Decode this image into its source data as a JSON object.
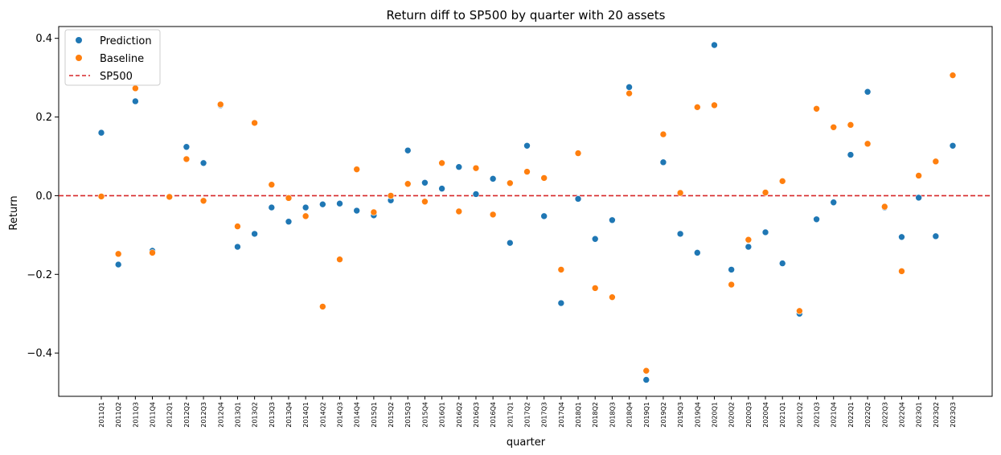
{
  "chart_data": {
    "type": "scatter",
    "title": "Return diff to SP500 by quarter with 20 assets",
    "xlabel": "quarter",
    "ylabel": "Return",
    "ylim": [
      -0.51,
      0.43
    ],
    "yticks": [
      0.4,
      0.2,
      0.0,
      -0.2,
      -0.4
    ],
    "ytick_labels": [
      "0.4",
      "0.2",
      "0.0",
      "−0.2",
      "−0.4"
    ],
    "grid": false,
    "legend_position": "top-left",
    "categories": [
      "2011Q1",
      "2011Q2",
      "2011Q3",
      "2011Q4",
      "2012Q1",
      "2012Q2",
      "2012Q3",
      "2012Q4",
      "2013Q1",
      "2013Q2",
      "2013Q3",
      "2013Q4",
      "2014Q1",
      "2014Q2",
      "2014Q3",
      "2014Q4",
      "2015Q1",
      "2015Q2",
      "2015Q3",
      "2015Q4",
      "2016Q1",
      "2016Q2",
      "2016Q3",
      "2016Q4",
      "2017Q1",
      "2017Q2",
      "2017Q3",
      "2017Q4",
      "2018Q1",
      "2018Q2",
      "2018Q3",
      "2018Q4",
      "2019Q1",
      "2019Q2",
      "2019Q3",
      "2019Q4",
      "2020Q1",
      "2020Q2",
      "2020Q3",
      "2020Q4",
      "2021Q1",
      "2021Q2",
      "2021Q3",
      "2021Q4",
      "2022Q1",
      "2022Q2",
      "2022Q3",
      "2022Q4",
      "2023Q1",
      "2023Q2",
      "2023Q3"
    ],
    "series": [
      {
        "name": "Prediction",
        "color": "#1f77b4",
        "values": [
          0.16,
          -0.175,
          0.24,
          -0.14,
          -0.003,
          0.124,
          0.083,
          0.23,
          -0.13,
          -0.097,
          -0.03,
          -0.066,
          -0.03,
          -0.022,
          -0.02,
          -0.038,
          -0.05,
          -0.012,
          0.115,
          0.033,
          0.018,
          0.073,
          0.004,
          0.043,
          -0.12,
          0.127,
          -0.052,
          -0.273,
          -0.008,
          -0.11,
          -0.062,
          0.276,
          -0.468,
          0.085,
          -0.097,
          -0.145,
          0.383,
          -0.188,
          -0.13,
          -0.093,
          -0.172,
          -0.3,
          -0.06,
          -0.017,
          0.104,
          0.264,
          -0.03,
          -0.105,
          -0.005,
          -0.103,
          0.127
        ]
      },
      {
        "name": "Baseline",
        "color": "#ff7f0e",
        "values": [
          -0.002,
          -0.148,
          0.273,
          -0.145,
          -0.003,
          0.093,
          -0.013,
          0.232,
          -0.078,
          0.185,
          0.028,
          -0.006,
          -0.052,
          -0.282,
          -0.162,
          0.067,
          -0.042,
          0.0,
          0.03,
          -0.015,
          0.083,
          -0.04,
          0.07,
          -0.048,
          0.032,
          0.061,
          0.045,
          -0.188,
          0.108,
          -0.235,
          -0.258,
          0.26,
          -0.445,
          0.156,
          0.007,
          0.225,
          0.23,
          -0.226,
          -0.112,
          0.008,
          0.037,
          -0.293,
          0.221,
          0.174,
          0.18,
          0.132,
          -0.028,
          -0.192,
          0.051,
          0.087,
          0.306
        ]
      }
    ],
    "reference_line": {
      "name": "SP500",
      "value": 0.0,
      "color": "#d62728",
      "style": "dashed"
    }
  }
}
